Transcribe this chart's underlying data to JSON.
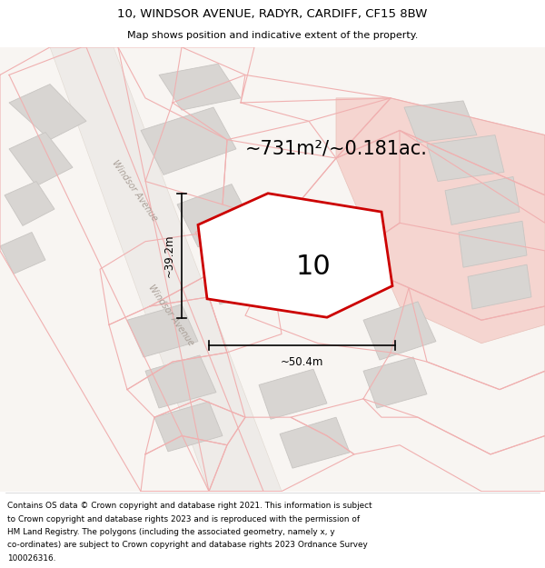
{
  "title_line1": "10, WINDSOR AVENUE, RADYR, CARDIFF, CF15 8BW",
  "title_line2": "Map shows position and indicative extent of the property.",
  "area_text": "~731m²/~0.181ac.",
  "label_number": "10",
  "dim_width": "~50.4m",
  "dim_height": "~39.2m",
  "footer_lines": [
    "Contains OS data © Crown copyright and database right 2021. This information is subject",
    "to Crown copyright and database rights 2023 and is reproduced with the permission of",
    "HM Land Registry. The polygons (including the associated geometry, namely x, y",
    "co-ordinates) are subject to Crown copyright and database rights 2023 Ordnance Survey",
    "100026316."
  ],
  "map_bg": "#f5f2f0",
  "building_fill": "#d8d5d2",
  "building_edge": "#c8c5c2",
  "parcel_fill": "#ffffff",
  "parcel_edge": "#f0b0b0",
  "highlight_fill": "#f5d5d0",
  "highlight_edge": "#e8c0b8",
  "property_fill": "#ffffff",
  "property_edge": "#cc0000",
  "road_fill": "#ffffff",
  "road_edge": "#e8c8c0",
  "windsor_label": "Windsor Avenue",
  "windsor_label2": "Windsor Avenue"
}
